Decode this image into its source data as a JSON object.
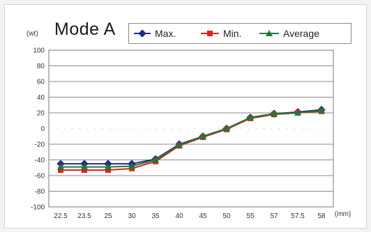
{
  "chart_data": {
    "type": "line",
    "title": "Mode A",
    "ylabel": "(wt)",
    "xlabel": "(mm)",
    "categories": [
      "22.5",
      "23.5",
      "25",
      "30",
      "35",
      "40",
      "45",
      "50",
      "55",
      "57",
      "57.5",
      "58"
    ],
    "ylim": [
      -100,
      100
    ],
    "yticks": [
      "100",
      "80",
      "60",
      "40",
      "20",
      "0",
      "-20",
      "-40",
      "-60",
      "-80",
      "-100"
    ],
    "grid": true,
    "legend_position": "top-right",
    "series": [
      {
        "name": "Max.",
        "color": "#1f2f8a",
        "marker": "diamond",
        "values": [
          -45,
          -45,
          -45,
          -45,
          -39,
          -20,
          -10,
          0,
          14,
          19,
          21,
          24
        ]
      },
      {
        "name": "Min.",
        "color": "#e0201b",
        "marker": "square",
        "values": [
          -53,
          -53,
          -53,
          -51,
          -42,
          -22,
          -11,
          -1,
          13,
          18,
          20,
          22
        ]
      },
      {
        "name": "Average",
        "color": "#1e7a36",
        "marker": "triangle",
        "values": [
          -49,
          -49,
          -49,
          -48,
          -40,
          -21,
          -10,
          0,
          14,
          19,
          20,
          23
        ]
      }
    ]
  }
}
